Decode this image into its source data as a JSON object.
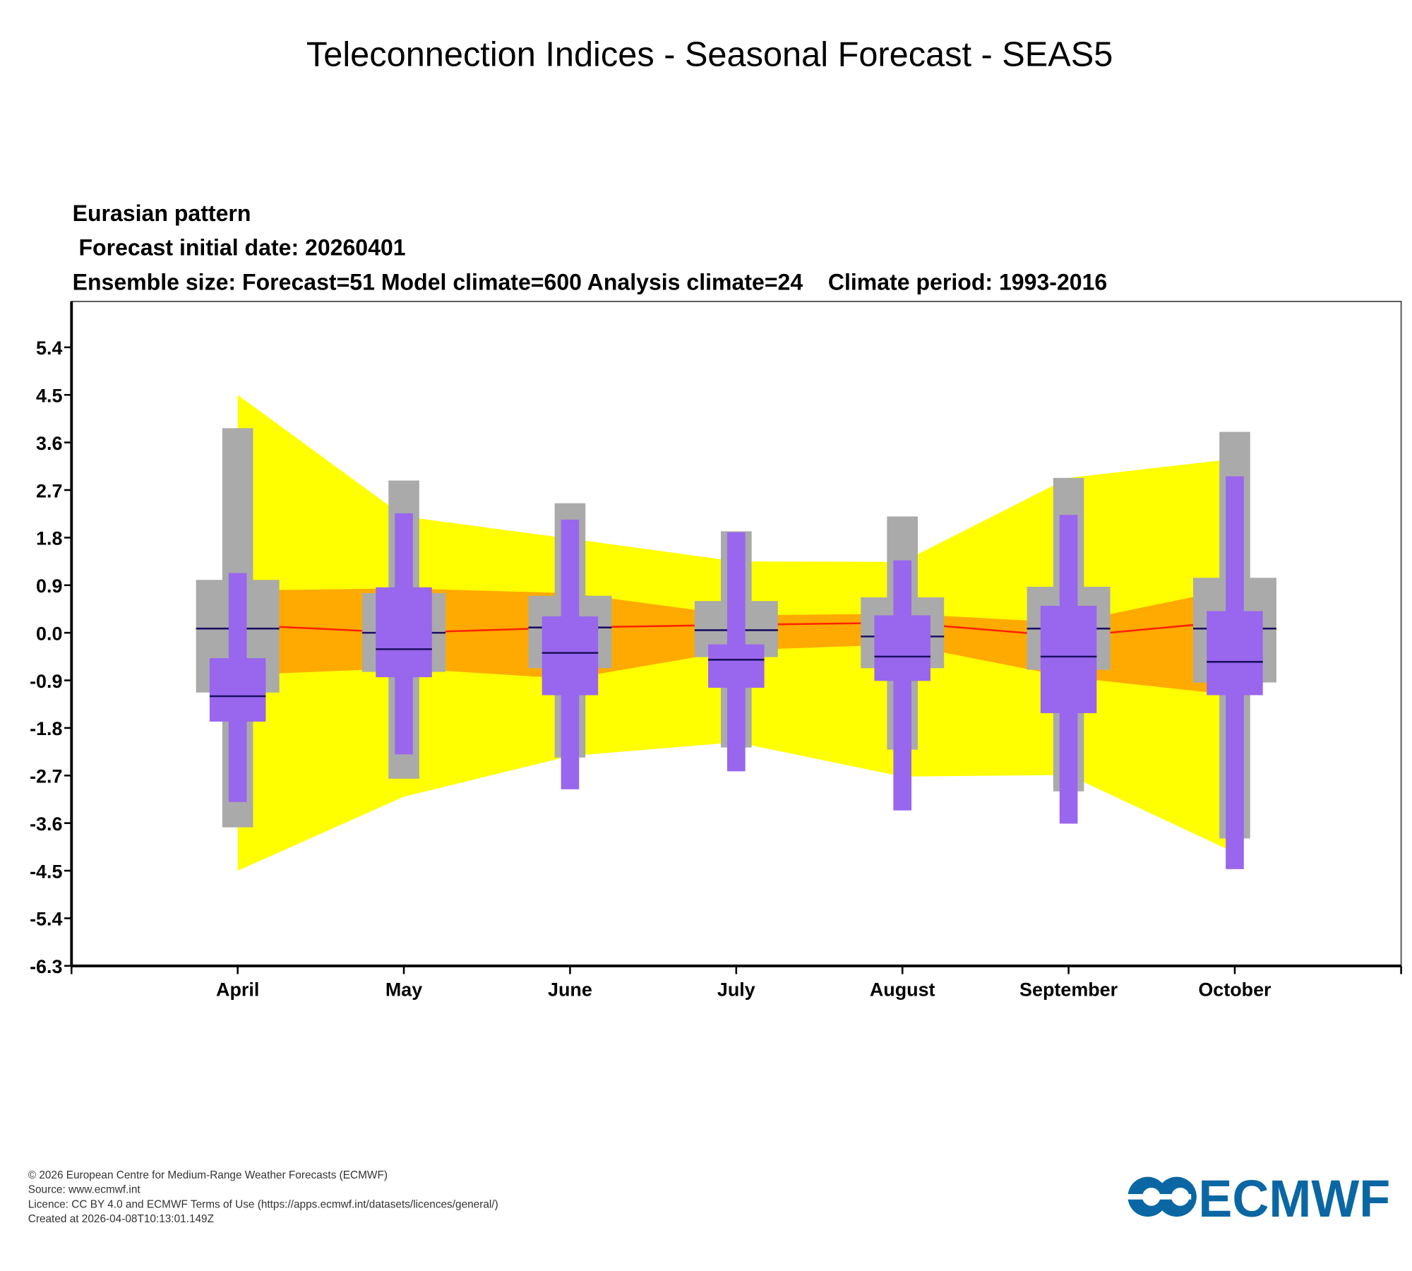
{
  "page_title": "Teleconnection Indices - Seasonal Forecast - SEAS5",
  "subtitle": {
    "line1": "Eurasian pattern",
    "line2": " Forecast initial date: 20260401",
    "line3": "Ensemble size: Forecast=51 Model climate=600 Analysis climate=24    Climate period: 1993-2016"
  },
  "footer": {
    "copyright": "© 2026 European Centre for Medium-Range Weather Forecasts (ECMWF)",
    "source": "Source: www.ecmwf.int",
    "licence": "Licence: CC BY 4.0 and ECMWF Terms of Use (https://apps.ecmwf.int/datasets/licences/general/)",
    "created": "Created at 2026-04-08T10:13:01.149Z"
  },
  "logo_text": "ECMWF",
  "colors": {
    "analysis_outer": "#ffff00",
    "analysis_inner": "#ffaa00",
    "analysis_median": "#ff2200",
    "model_climate": "#aaaaaa",
    "forecast": "#9966ee",
    "median_line": "#1a1060",
    "logo": "#0a67a3"
  },
  "chart_data": {
    "type": "box",
    "title": "Eurasian pattern",
    "categories": [
      "April",
      "May",
      "June",
      "July",
      "August",
      "September",
      "October"
    ],
    "yticks": [
      "5.4",
      "4.5",
      "3.6",
      "2.7",
      "1.8",
      "0.9",
      "0.0",
      "-0.9",
      "-1.8",
      "-2.7",
      "-3.6",
      "-4.5",
      "-5.4",
      "-6.3"
    ],
    "ylim": [
      -6.3,
      6.3
    ],
    "analysis_climate": {
      "max": [
        4.5,
        2.2,
        1.78,
        1.35,
        1.34,
        2.93,
        3.29
      ],
      "upper": [
        0.8,
        0.84,
        0.75,
        0.33,
        0.36,
        0.19,
        0.84
      ],
      "median": [
        0.15,
        0.0,
        0.1,
        0.15,
        0.19,
        -0.07,
        0.22
      ],
      "lower": [
        -0.8,
        -0.67,
        -0.87,
        -0.33,
        -0.22,
        -0.84,
        -1.18
      ],
      "min": [
        -4.5,
        -3.1,
        -2.33,
        -2.07,
        -2.72,
        -2.69,
        -4.16
      ]
    },
    "model_climate": {
      "max": [
        3.87,
        2.88,
        2.45,
        1.92,
        2.2,
        2.93,
        3.8
      ],
      "q3": [
        1.0,
        0.75,
        0.7,
        0.6,
        0.67,
        0.87,
        1.04
      ],
      "median": [
        0.08,
        0.0,
        0.1,
        0.05,
        -0.07,
        0.08,
        0.08
      ],
      "q1": [
        -1.13,
        -0.74,
        -0.67,
        -0.46,
        -0.67,
        -0.7,
        -0.94
      ],
      "min": [
        -3.68,
        -2.76,
        -2.36,
        -2.17,
        -2.21,
        -3.0,
        -3.89
      ]
    },
    "forecast": {
      "max": [
        1.13,
        2.26,
        2.14,
        1.9,
        1.37,
        2.23,
        2.96
      ],
      "q3": [
        -0.48,
        0.86,
        0.31,
        -0.22,
        0.33,
        0.51,
        0.41
      ],
      "median": [
        -1.2,
        -0.31,
        -0.38,
        -0.51,
        -0.45,
        -0.45,
        -0.55
      ],
      "q1": [
        -1.68,
        -0.84,
        -1.18,
        -1.04,
        -0.91,
        -1.52,
        -1.18
      ],
      "min": [
        -3.2,
        -2.3,
        -2.96,
        -2.62,
        -3.36,
        -3.61,
        -4.47
      ]
    }
  }
}
